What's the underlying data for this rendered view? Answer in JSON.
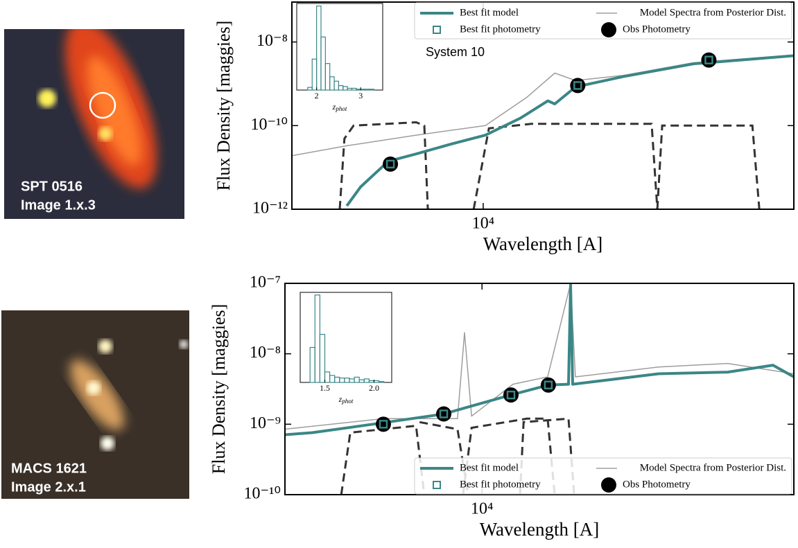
{
  "images": [
    {
      "label_lines": [
        "SPT 0516",
        "Image 1.x.3"
      ]
    },
    {
      "label_lines": [
        "MACS 1621",
        "Image 2.x.1"
      ]
    }
  ],
  "chart_data": [
    {
      "type": "line",
      "log_x": true,
      "log_y": true,
      "xlabel": "Wavelength [A]",
      "ylabel": "Flux Density [maggies]",
      "xlim": [
        3500,
        55000
      ],
      "ylim": [
        1e-12,
        9e-08
      ],
      "xticks": [
        {
          "value": 10000,
          "label": "10⁴"
        }
      ],
      "yticks": [
        {
          "value": 1e-12,
          "label": "10⁻¹²"
        },
        {
          "value": 1e-10,
          "label": "10⁻¹⁰"
        },
        {
          "value": 1e-08,
          "label": "10⁻⁸"
        }
      ],
      "legend": "upper right",
      "annotation": "System 10",
      "series": [
        {
          "name": "Best fit model",
          "marker": "line",
          "color": "#3b8686",
          "x": [
            4730,
            5100,
            5940,
            6920,
            8370,
            10120,
            12250,
            14260,
            14810,
            16600,
            21670,
            31700,
            55000
          ],
          "values": [
            1.2e-12,
            3.4e-12,
            1.4e-11,
            2.1e-11,
            3.6e-11,
            5.9e-11,
            1.5e-10,
            3.9e-10,
            3.3e-10,
            8.4e-10,
            1.5e-09,
            3e-09,
            4.7e-09
          ]
        },
        {
          "name": "Model Spectra from Posterior Dist.",
          "marker": "thin-line",
          "color": "#8c8c8c",
          "x": [
            3500,
            4730,
            6920,
            10120,
            12720,
            14810,
            16600,
            21670,
            31700,
            55000
          ],
          "values": [
            1.9e-11,
            3.3e-11,
            5.9e-11,
            1e-10,
            4.8e-10,
            1.8e-09,
            1.2e-09,
            1.6e-09,
            3.2e-09,
            4.9e-09
          ]
        },
        {
          "name": "Best fit photometry",
          "marker": "square",
          "color": "#3b8686",
          "x": [
            6010,
            16800,
            34500
          ],
          "values": [
            1.2e-11,
            9.1e-10,
            3.7e-09
          ]
        },
        {
          "name": "Obs Photometry",
          "marker": "circle",
          "color": "#000000",
          "x": [
            6010,
            16800,
            34500
          ],
          "values": [
            1.2e-11,
            9.1e-10,
            3.7e-09
          ]
        }
      ],
      "filters_color": "#333333",
      "filters": [
        {
          "x": [
            4550,
            4670,
            4910,
            6920,
            7240,
            7380
          ],
          "values": [
            1e-12,
            4.9e-11,
            1e-10,
            1.2e-10,
            1e-10,
            1e-12
          ]
        },
        {
          "x": [
            9490,
            10320,
            13000,
            25200,
            26000
          ],
          "values": [
            1e-12,
            8.6e-11,
            1.1e-10,
            1.1e-10,
            1e-12
          ]
        },
        {
          "x": [
            26000,
            26700,
            43800,
            45500
          ],
          "values": [
            1e-12,
            1e-10,
            1e-10,
            1e-12
          ]
        }
      ],
      "inset": {
        "type": "histogram",
        "xlabel": "z",
        "xlabel_subscript": "phot",
        "color": "#3b8686",
        "xlim": [
          1.55,
          3.5
        ],
        "xticks": [
          2,
          3
        ],
        "bins": [
          1.8,
          1.9,
          2.0,
          2.1,
          2.2,
          2.3,
          2.4,
          2.5,
          2.6,
          2.7,
          2.8,
          2.9,
          3.0,
          3.1,
          3.2,
          3.3
        ],
        "counts": [
          3,
          35,
          95,
          60,
          30,
          15,
          10,
          5,
          4,
          2,
          2,
          1,
          1,
          1,
          1
        ]
      }
    },
    {
      "type": "line",
      "log_x": true,
      "log_y": true,
      "xlabel": "Wavelength [A]",
      "ylabel": "Flux Density [maggies]",
      "xlim": [
        4100,
        41000
      ],
      "ylim": [
        1e-10,
        1e-07
      ],
      "xticks": [
        {
          "value": 10000,
          "label": "10⁴"
        }
      ],
      "yticks": [
        {
          "value": 1e-10,
          "label": "10⁻¹⁰"
        },
        {
          "value": 1e-09,
          "label": "10⁻⁹"
        },
        {
          "value": 1e-08,
          "label": "10⁻⁸"
        },
        {
          "value": 1e-07,
          "label": "10⁻⁷"
        }
      ],
      "legend": "lower right",
      "series": [
        {
          "name": "Best fit model",
          "marker": "line",
          "color": "#3b8686",
          "x": [
            4100,
            4640,
            6400,
            8410,
            9240,
            11400,
            13500,
            14790,
            14930,
            15070,
            22240,
            30400,
            37300,
            41000
          ],
          "values": [
            7.1e-10,
            7.6e-10,
            1.05e-09,
            1.4e-09,
            1.7e-09,
            2.6e-09,
            3.6e-09,
            3.7e-09,
            9.5e-08,
            3.7e-09,
            5.2e-09,
            5.5e-09,
            6.9e-09,
            4.7e-09
          ]
        },
        {
          "name": "Model Spectra from Posterior Dist.",
          "marker": "thin-line",
          "color": "#8c8c8c",
          "x": [
            4100,
            6400,
            8950,
            9240,
            9540,
            11500,
            13460,
            14930,
            15260,
            22240,
            30400,
            41000
          ],
          "values": [
            8.5e-10,
            1.2e-09,
            1.2e-09,
            2e-08,
            1.3e-09,
            3.7e-09,
            4.7e-09,
            1e-07,
            4.7e-09,
            6.5e-09,
            7.3e-09,
            5.2e-09
          ]
        },
        {
          "name": "Best fit photometry",
          "marker": "square",
          "color": "#3b8686",
          "x": [
            6400,
            8410,
            11400,
            13500
          ],
          "values": [
            1e-09,
            1.4e-09,
            2.6e-09,
            3.6e-09
          ]
        },
        {
          "name": "Obs Photometry",
          "marker": "circle",
          "color": "#000000",
          "x": [
            6400,
            8410,
            11400,
            13500
          ],
          "values": [
            1e-09,
            1.4e-09,
            2.6e-09,
            3.6e-09
          ]
        }
      ],
      "filters_color": "#333333",
      "filters": [
        {
          "x": [
            5290,
            5510,
            7420,
            7700
          ],
          "values": [
            1e-10,
            7.6e-10,
            9.5e-10,
            1e-10
          ]
        },
        {
          "x": [
            7540,
            8950,
            9390
          ],
          "values": [
            1.07e-09,
            8.5e-10,
            1e-10
          ]
        },
        {
          "x": [
            9180,
            9540,
            12250,
            13460,
            13890
          ],
          "values": [
            1e-10,
            8.9e-10,
            1.2e-09,
            1.2e-09,
            1e-10
          ]
        },
        {
          "x": [
            11880,
            12070,
            14790,
            15170
          ],
          "values": [
            1e-10,
            1.07e-09,
            1.2e-09,
            1e-10
          ]
        }
      ],
      "inset": {
        "type": "histogram",
        "xlabel": "z",
        "xlabel_subscript": "phot",
        "color": "#3b8686",
        "xlim": [
          1.25,
          2.18
        ],
        "xticks": [
          1.5,
          {
            "value": 2,
            "label": "2.0"
          }
        ],
        "bins": [
          1.3,
          1.35,
          1.4,
          1.45,
          1.5,
          1.55,
          1.6,
          1.65,
          1.7,
          1.75,
          1.8,
          1.85,
          1.9,
          1.95,
          2.0,
          2.05,
          2.1
        ],
        "counts": [
          0,
          40,
          100,
          55,
          12,
          8,
          6,
          5,
          5,
          4,
          6,
          3,
          4,
          2,
          2,
          1
        ]
      }
    }
  ]
}
